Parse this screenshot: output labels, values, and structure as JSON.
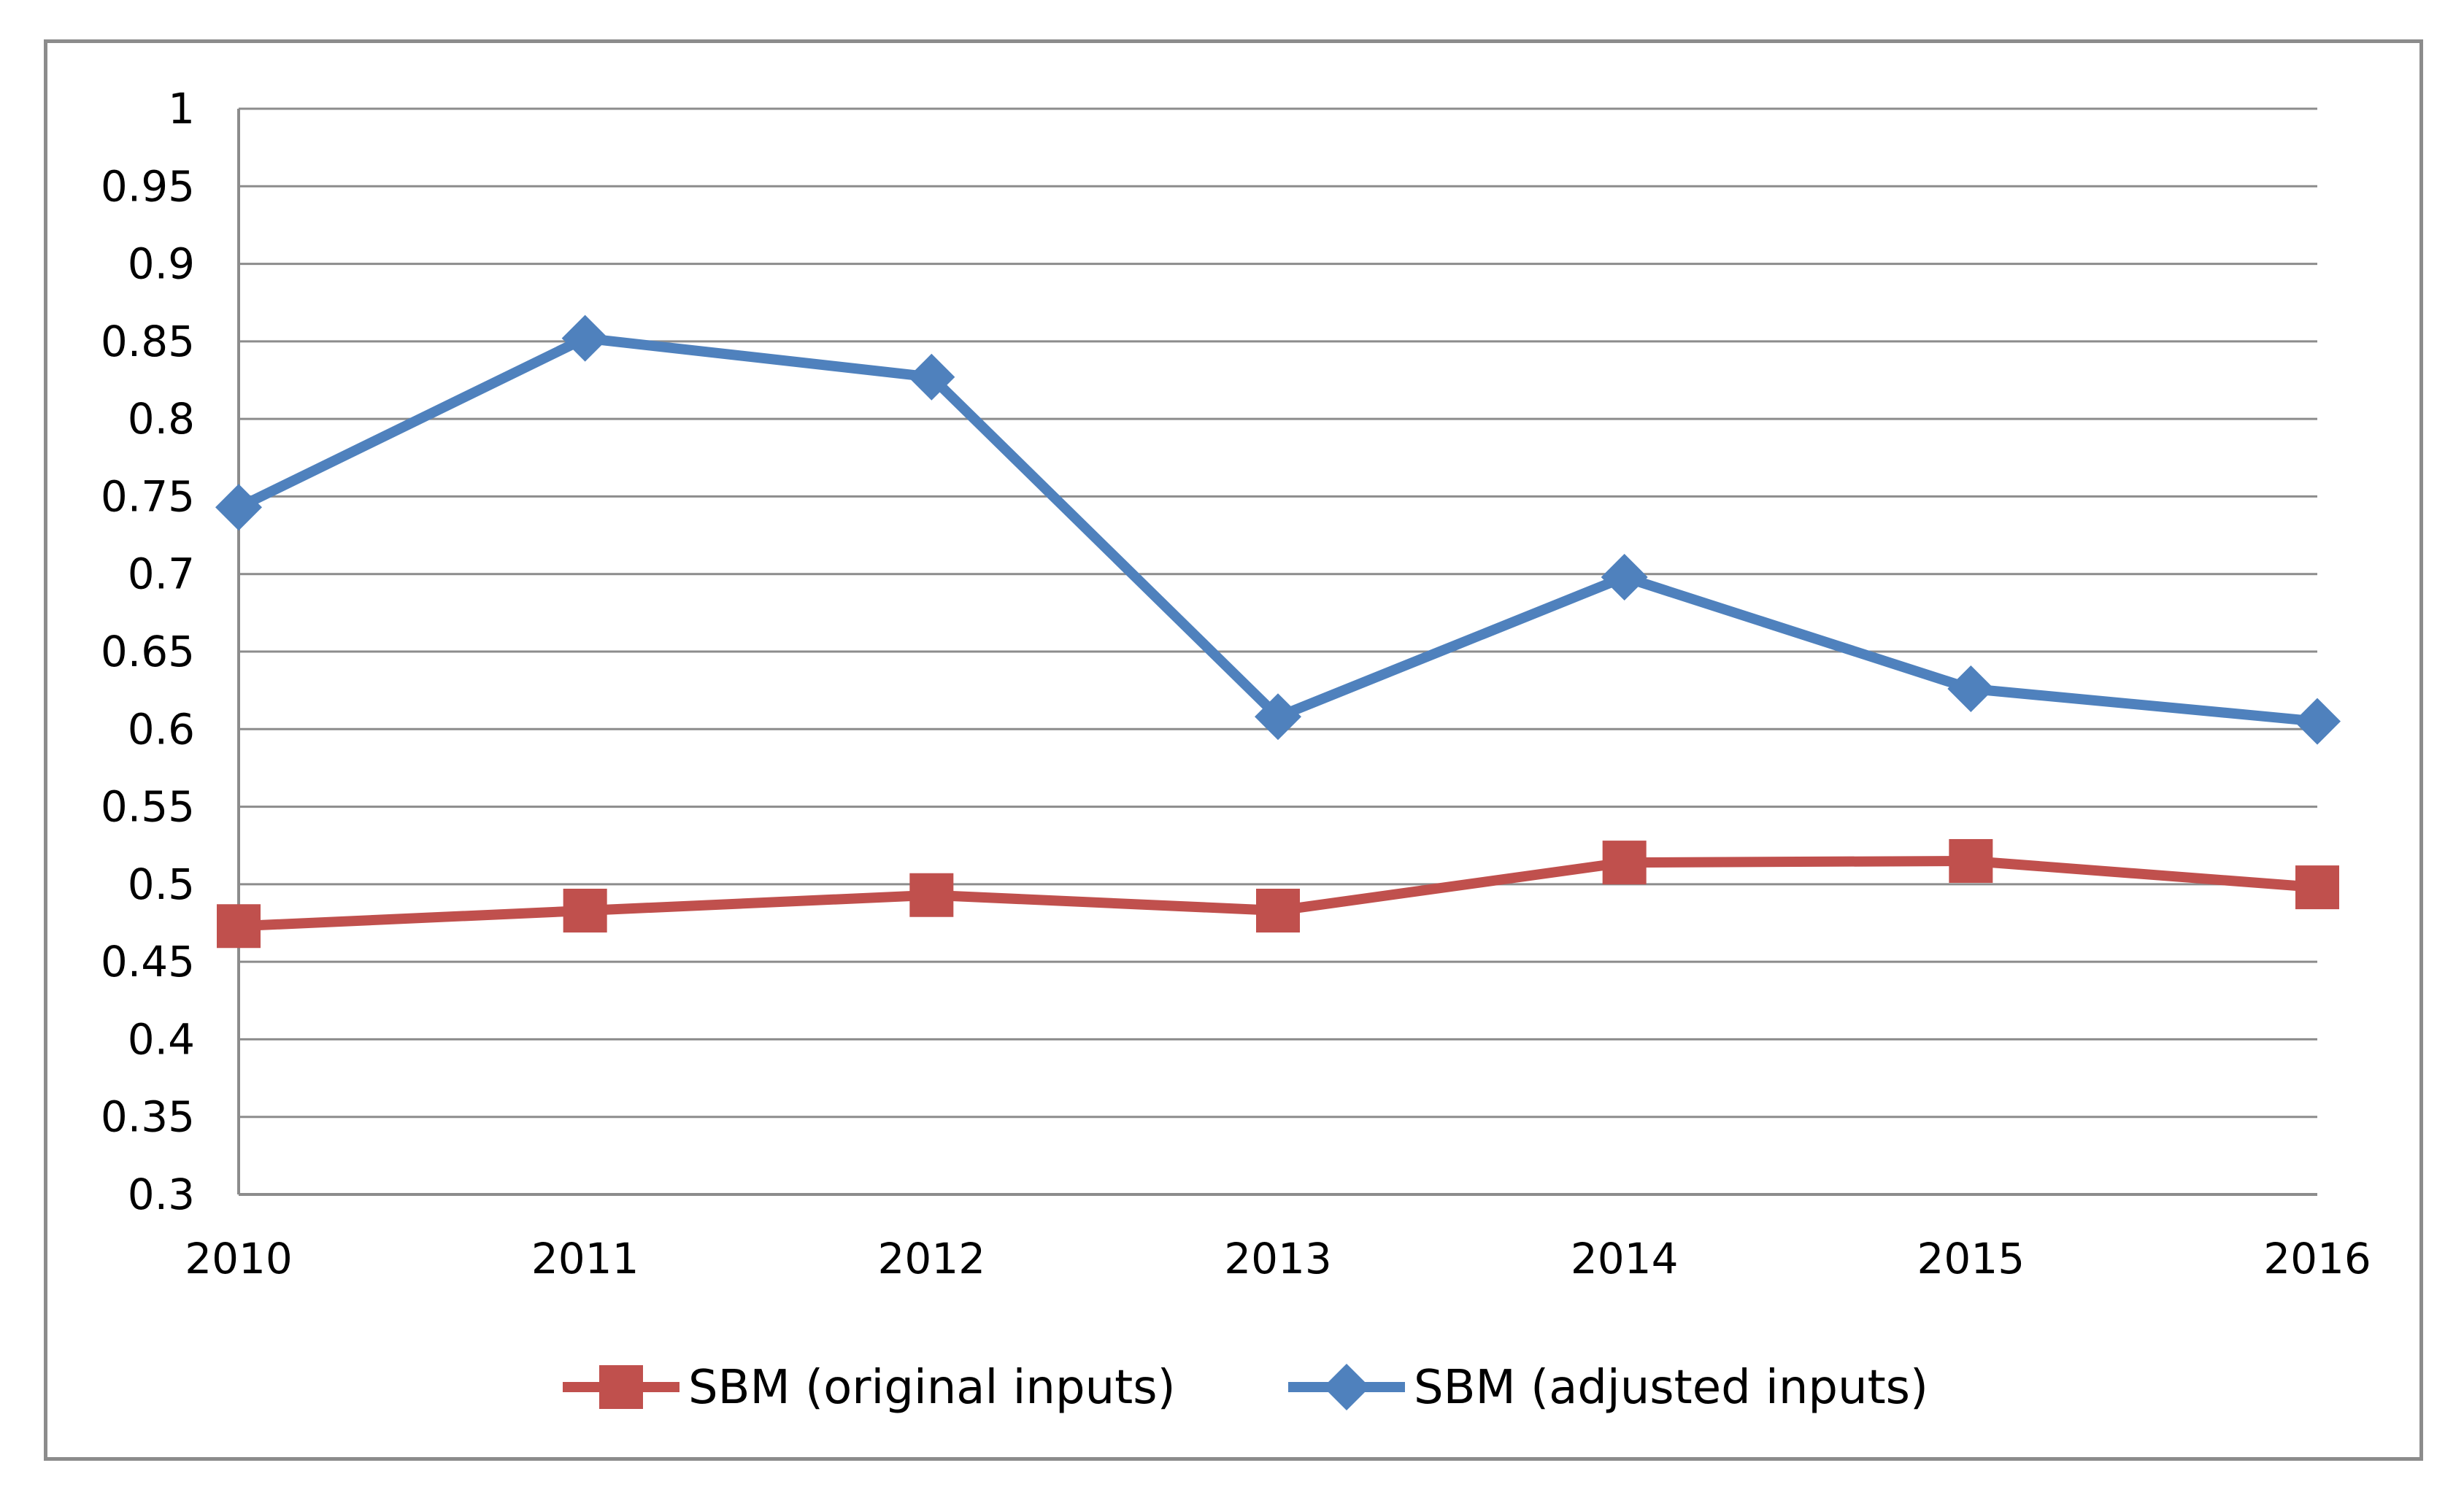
{
  "chart_data": {
    "type": "line",
    "title": "",
    "xlabel": "",
    "ylabel": "",
    "categories": [
      "2010",
      "2011",
      "2012",
      "2013",
      "2014",
      "2015",
      "2016"
    ],
    "ylim": [
      0.3,
      1
    ],
    "yticks": [
      "0.3",
      "0.35",
      "0.4",
      "0.45",
      "0.5",
      "0.55",
      "0.6",
      "0.65",
      "0.7",
      "0.75",
      "0.8",
      "0.85",
      "0.9",
      "0.95",
      "1"
    ],
    "ytick_values": [
      0.3,
      0.35,
      0.4,
      0.45,
      0.5,
      0.55,
      0.6,
      0.65,
      0.7,
      0.75,
      0.8,
      0.85,
      0.9,
      0.95,
      1.0
    ],
    "grid": true,
    "legend_position": "bottom",
    "series": [
      {
        "name": "SBM (original inputs)",
        "color": "#c0504d",
        "marker": "square",
        "values": [
          0.473,
          0.483,
          0.493,
          0.483,
          0.514,
          0.515,
          0.498
        ]
      },
      {
        "name": "SBM (adjusted inputs)",
        "color": "#4f81bd",
        "marker": "diamond",
        "values": [
          0.743,
          0.852,
          0.827,
          0.608,
          0.698,
          0.626,
          0.605
        ]
      }
    ]
  }
}
